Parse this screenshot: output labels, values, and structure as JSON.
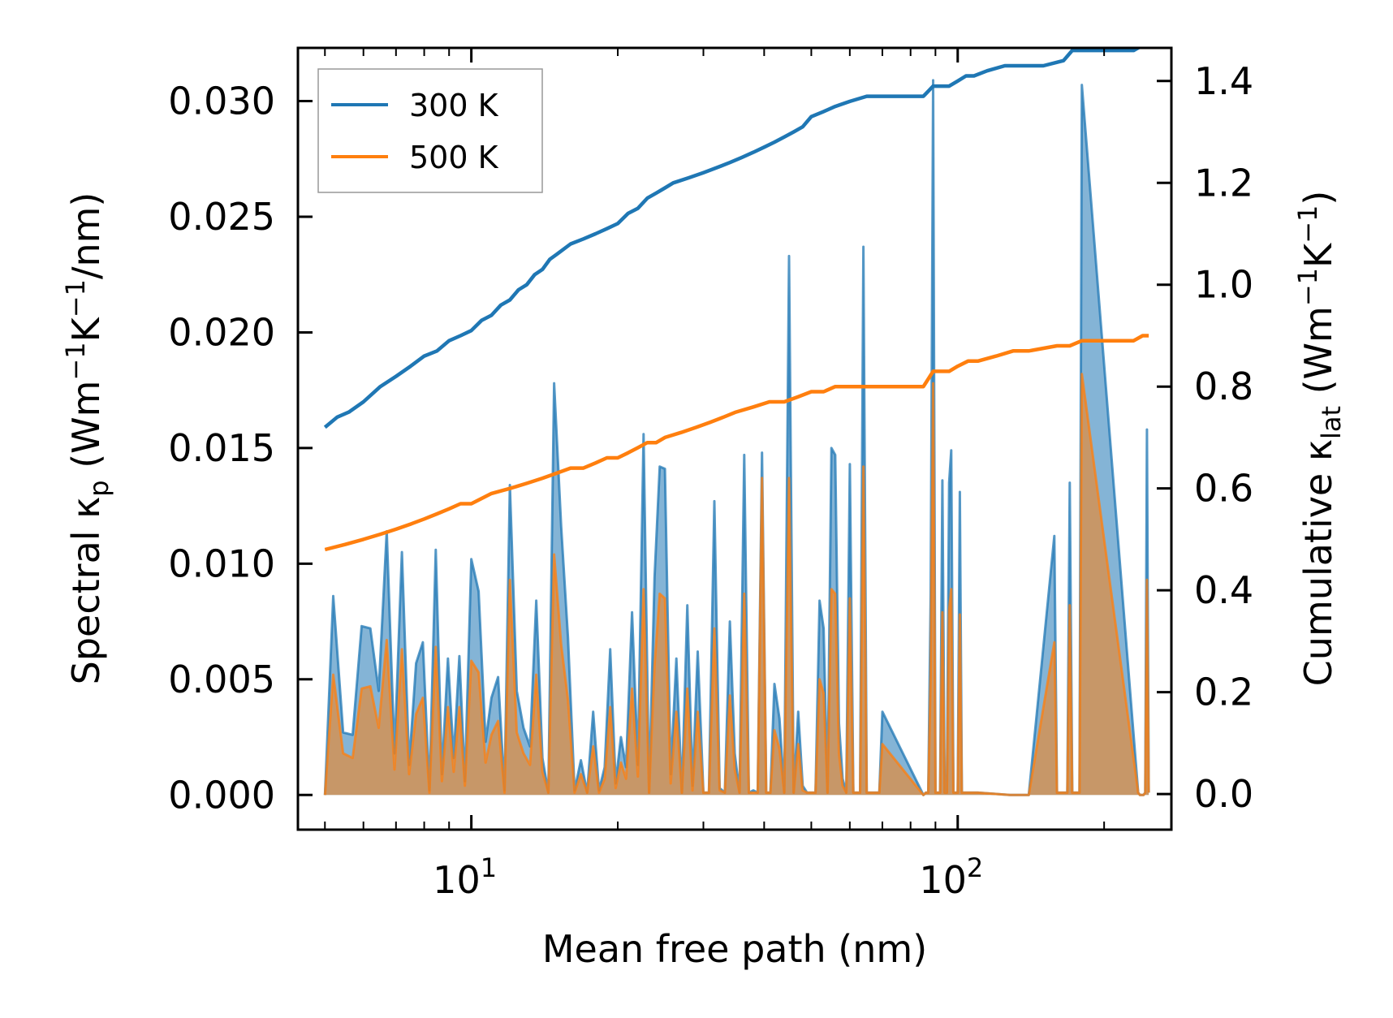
{
  "chart_data": {
    "type": "line",
    "xscale": "log",
    "xlabel": "Mean free path (nm)",
    "ylabel_left": "Spectral κ_p (Wm⁻¹K⁻¹/nm)",
    "ylabel_right": "Cumulative κ_lat (Wm⁻¹K⁻¹)",
    "ylabel_left_parts": {
      "pre": "Spectral κ",
      "sub": "p",
      "mid": " (Wm",
      "sup1": "−1",
      "mid2": "K",
      "sup2": "−1",
      "post": "/nm)"
    },
    "ylabel_right_parts": {
      "pre": "Cumulative κ",
      "sub": "lat",
      "mid": " (Wm",
      "sup1": "−1",
      "mid2": "K",
      "sup2": "−1",
      "post": ")"
    },
    "xlim": [
      4.4,
      275
    ],
    "ylim_left": [
      -0.0015,
      0.0323
    ],
    "ylim_right": [
      -0.07,
      1.465
    ],
    "x_ticks_major": [
      {
        "value": 10,
        "base": "10",
        "exp": "1"
      },
      {
        "value": 100,
        "base": "10",
        "exp": "2"
      }
    ],
    "y_ticks_left": [
      "0.000",
      "0.005",
      "0.010",
      "0.015",
      "0.020",
      "0.025",
      "0.030"
    ],
    "y_ticks_right": [
      "0.0",
      "0.2",
      "0.4",
      "0.6",
      "0.8",
      "1.0",
      "1.2",
      "1.4"
    ],
    "legend": [
      {
        "label": "300 K",
        "color": "#1f77b4"
      },
      {
        "label": "500 K",
        "color": "#ff7f0e"
      }
    ],
    "legend_position": "top-left",
    "series": [
      {
        "name": "300 K",
        "color": "#1f77b4",
        "spectral": {
          "x": [
            5.0,
            5.2,
            5.45,
            5.7,
            5.95,
            6.2,
            6.45,
            6.7,
            6.95,
            7.2,
            7.45,
            7.7,
            7.95,
            8.2,
            8.45,
            8.7,
            8.95,
            9.2,
            9.45,
            9.7,
            10.0,
            10.35,
            10.7,
            11.0,
            11.35,
            11.7,
            12.0,
            12.4,
            12.8,
            13.2,
            13.6,
            14.0,
            14.4,
            14.8,
            15.3,
            15.8,
            16.3,
            16.8,
            17.3,
            17.8,
            18.3,
            18.8,
            19.3,
            19.8,
            20.3,
            20.8,
            21.4,
            22.0,
            22.6,
            23.2,
            23.8,
            24.4,
            25.0,
            25.7,
            26.4,
            27.1,
            27.8,
            28.5,
            29.2,
            30.0,
            30.8,
            31.6,
            32.4,
            33.2,
            34.0,
            34.8,
            35.6,
            36.4,
            37.2,
            38.0,
            38.8,
            39.6,
            40.4,
            41.2,
            42.0,
            43.0,
            44.0,
            45.0,
            46.0,
            47.0,
            48.0,
            49.0,
            50.0,
            51.0,
            52.0,
            53.0,
            54.0,
            55.0,
            56.0,
            57.0,
            58.0,
            59.0,
            60.0,
            61.0,
            62.0,
            63.0,
            64.0,
            65.0,
            66.0,
            67.0,
            68.0,
            69.0,
            70.0,
            85.0,
            86.0,
            87.0,
            88.0,
            89.0,
            90.0,
            91.0,
            92.0,
            93.0,
            94.0,
            95.0,
            96.0,
            97.0,
            98.0,
            99.0,
            100.0,
            101.0,
            102.0,
            103.0,
            104.0,
            105.0,
            106.0,
            107.0,
            108.0,
            109.0,
            110.0,
            128.0,
            130.0,
            132.0,
            134.0,
            136.0,
            138.0,
            140.0,
            158.0,
            160.0,
            162.0,
            164.0,
            166.0,
            168.0,
            170.0,
            172.0,
            174.0,
            176.0,
            178.0,
            180.0,
            235.0,
            237.0,
            239.0,
            241.0,
            243.0,
            245.0,
            247.0
          ],
          "y": [
            0.0,
            0.0086,
            0.0027,
            0.0026,
            0.0073,
            0.0072,
            0.0045,
            0.0114,
            0.0018,
            0.0105,
            0.0013,
            0.0057,
            0.0066,
            0.0002,
            0.0106,
            0.0009,
            0.0059,
            0.0016,
            0.006,
            0.0006,
            0.0102,
            0.0088,
            0.0023,
            0.0042,
            0.0051,
            0.0002,
            0.0134,
            0.0045,
            0.0029,
            0.0021,
            0.0084,
            0.0016,
            0.0001,
            0.0178,
            0.0116,
            0.0068,
            0.0002,
            0.0015,
            0.0001,
            0.0036,
            0.0002,
            0.0012,
            0.0063,
            0.0005,
            0.0025,
            0.0012,
            0.0079,
            0.0013,
            0.0156,
            0.0001,
            0.0094,
            0.0142,
            0.0141,
            0.0009,
            0.0059,
            0.0001,
            0.0082,
            0.0004,
            0.0062,
            0.0001,
            0.0001,
            0.0127,
            0.0003,
            0.0001,
            0.0075,
            0.0018,
            0.0001,
            0.0147,
            0.0001,
            0.0002,
            0.0001,
            0.0148,
            0.0001,
            0.0001,
            0.0048,
            0.0033,
            0.0001,
            0.0233,
            0.0001,
            0.0036,
            0.0004,
            0.0001,
            0.0001,
            0.0001,
            0.0084,
            0.0072,
            0.0001,
            0.015,
            0.0147,
            0.0031,
            0.0007,
            0.0001,
            0.0143,
            0.0001,
            0.0001,
            0.0001,
            0.0237,
            0.0001,
            0.0001,
            0.0001,
            0.0001,
            0.0001,
            0.0036,
            0.0,
            0.0001,
            0.0001,
            0.0087,
            0.0309,
            0.0001,
            0.0001,
            0.0001,
            0.0136,
            0.0001,
            0.0001,
            0.0135,
            0.0149,
            0.0001,
            0.0001,
            0.0001,
            0.0131,
            0.0001,
            0.0001,
            0.0001,
            0.0001,
            0.0001,
            0.0001,
            0.0001,
            0.0001,
            0.0001,
            0.0,
            0.0,
            0.0,
            0.0,
            0.0,
            0.0,
            0.0,
            0.0112,
            0.0001,
            0.0001,
            0.0001,
            0.0001,
            0.0001,
            0.0135,
            0.0001,
            0.0001,
            0.0001,
            0.0001,
            0.0307,
            0.0001,
            0.0,
            0.0,
            0.0,
            0.0001,
            0.0158,
            0.0001
          ]
        },
        "cumulative": {
          "x": [
            5.0,
            5.3,
            5.6,
            6.0,
            6.5,
            7.0,
            7.5,
            8.0,
            8.5,
            9.0,
            9.5,
            10.0,
            10.5,
            11.0,
            11.5,
            12.0,
            12.5,
            13.0,
            13.5,
            14.0,
            14.5,
            15.0,
            16.0,
            17.0,
            18.0,
            19.0,
            20.0,
            21.0,
            22.0,
            23.0,
            24.0,
            25.0,
            26.0,
            28.0,
            30.0,
            32.0,
            34.0,
            36.0,
            38.0,
            40.0,
            42.0,
            44.0,
            46.0,
            48.0,
            50.0,
            53.0,
            56.0,
            60.0,
            65.0,
            70.0,
            75.0,
            80.0,
            85.0,
            89.0,
            92.0,
            96.0,
            100.0,
            104.0,
            108.0,
            115.0,
            125.0,
            135.0,
            150.0,
            165.0,
            172.0,
            180.0,
            200.0,
            230.0,
            240.0,
            247.0
          ],
          "y": [
            0.72,
            0.74,
            0.75,
            0.77,
            0.8,
            0.82,
            0.84,
            0.86,
            0.87,
            0.89,
            0.9,
            0.91,
            0.93,
            0.94,
            0.96,
            0.97,
            0.99,
            1.0,
            1.02,
            1.03,
            1.05,
            1.06,
            1.08,
            1.09,
            1.1,
            1.11,
            1.12,
            1.14,
            1.15,
            1.17,
            1.18,
            1.19,
            1.2,
            1.21,
            1.22,
            1.23,
            1.24,
            1.25,
            1.26,
            1.27,
            1.28,
            1.29,
            1.3,
            1.31,
            1.33,
            1.34,
            1.35,
            1.36,
            1.37,
            1.37,
            1.37,
            1.37,
            1.37,
            1.39,
            1.39,
            1.39,
            1.4,
            1.41,
            1.41,
            1.42,
            1.43,
            1.43,
            1.43,
            1.44,
            1.46,
            1.46,
            1.46,
            1.46,
            1.47,
            1.47
          ]
        }
      },
      {
        "name": "500 K",
        "color": "#ff7f0e",
        "spectral": {
          "x": [
            5.0,
            5.2,
            5.45,
            5.7,
            5.95,
            6.2,
            6.45,
            6.7,
            6.95,
            7.2,
            7.45,
            7.7,
            7.95,
            8.2,
            8.45,
            8.7,
            8.95,
            9.2,
            9.45,
            9.7,
            10.0,
            10.35,
            10.7,
            11.0,
            11.35,
            11.7,
            12.0,
            12.4,
            12.8,
            13.2,
            13.6,
            14.0,
            14.4,
            14.8,
            15.3,
            15.8,
            16.3,
            16.8,
            17.3,
            17.8,
            18.3,
            18.8,
            19.3,
            19.8,
            20.3,
            20.8,
            21.4,
            22.0,
            22.6,
            23.2,
            23.8,
            24.4,
            25.0,
            25.7,
            26.4,
            27.1,
            27.8,
            28.5,
            29.2,
            30.0,
            30.8,
            31.6,
            32.4,
            33.2,
            34.0,
            34.8,
            35.6,
            36.4,
            37.2,
            38.0,
            38.8,
            39.6,
            40.4,
            41.2,
            42.0,
            43.0,
            44.0,
            45.0,
            46.0,
            47.0,
            48.0,
            49.0,
            50.0,
            51.0,
            52.0,
            53.0,
            54.0,
            55.0,
            56.0,
            57.0,
            58.0,
            59.0,
            60.0,
            61.0,
            62.0,
            63.0,
            64.0,
            65.0,
            66.0,
            67.0,
            68.0,
            69.0,
            70.0,
            85.0,
            86.0,
            87.0,
            88.0,
            89.0,
            90.0,
            91.0,
            92.0,
            93.0,
            94.0,
            95.0,
            96.0,
            97.0,
            98.0,
            99.0,
            100.0,
            101.0,
            102.0,
            103.0,
            104.0,
            105.0,
            106.0,
            107.0,
            108.0,
            109.0,
            110.0,
            128.0,
            130.0,
            132.0,
            134.0,
            136.0,
            138.0,
            140.0,
            158.0,
            160.0,
            162.0,
            164.0,
            166.0,
            168.0,
            170.0,
            172.0,
            174.0,
            176.0,
            178.0,
            180.0,
            235.0,
            237.0,
            239.0,
            241.0,
            243.0,
            245.0,
            247.0
          ],
          "y": [
            0.0,
            0.0052,
            0.0018,
            0.0016,
            0.0046,
            0.0047,
            0.0029,
            0.0067,
            0.0011,
            0.0063,
            0.0009,
            0.0035,
            0.0042,
            0.0001,
            0.0064,
            0.0006,
            0.0038,
            0.001,
            0.0038,
            0.0004,
            0.0058,
            0.0053,
            0.0014,
            0.0026,
            0.0032,
            0.0001,
            0.0093,
            0.0027,
            0.0018,
            0.0013,
            0.0052,
            0.001,
            0.0001,
            0.0104,
            0.0065,
            0.0041,
            0.0001,
            0.0009,
            0.0001,
            0.0021,
            0.0001,
            0.0007,
            0.0038,
            0.0003,
            0.0014,
            0.0007,
            0.0046,
            0.0008,
            0.0089,
            0.0001,
            0.0056,
            0.0087,
            0.0085,
            0.0005,
            0.0036,
            0.0001,
            0.0046,
            0.0002,
            0.0036,
            0.0001,
            0.0001,
            0.0072,
            0.0002,
            0.0001,
            0.0043,
            0.0011,
            0.0001,
            0.0087,
            0.0001,
            0.0001,
            0.0001,
            0.0137,
            0.0001,
            0.0001,
            0.0028,
            0.002,
            0.0001,
            0.0137,
            0.0001,
            0.0022,
            0.0002,
            0.0001,
            0.0001,
            0.0001,
            0.005,
            0.0044,
            0.0001,
            0.0089,
            0.0087,
            0.0018,
            0.0004,
            0.0001,
            0.0085,
            0.0001,
            0.0001,
            0.0001,
            0.0142,
            0.0001,
            0.0001,
            0.0001,
            0.0001,
            0.0001,
            0.0022,
            0.0,
            0.0001,
            0.0001,
            0.0052,
            0.0178,
            0.0001,
            0.0001,
            0.0001,
            0.0079,
            0.0001,
            0.0001,
            0.008,
            0.0089,
            0.0001,
            0.0001,
            0.0001,
            0.0078,
            0.0001,
            0.0001,
            0.0001,
            0.0001,
            0.0001,
            0.0001,
            0.0001,
            0.0001,
            0.0001,
            0.0,
            0.0,
            0.0,
            0.0,
            0.0,
            0.0,
            0.0,
            0.0066,
            0.0001,
            0.0001,
            0.0001,
            0.0001,
            0.0001,
            0.0082,
            0.0001,
            0.0001,
            0.0001,
            0.0001,
            0.0182,
            0.0001,
            0.0,
            0.0,
            0.0,
            0.0001,
            0.0093,
            0.0001
          ]
        },
        "cumulative": {
          "x": [
            5.0,
            5.5,
            6.0,
            6.5,
            7.0,
            7.5,
            8.0,
            8.5,
            9.0,
            9.5,
            10.0,
            11.0,
            12.0,
            13.0,
            14.0,
            15.0,
            16.0,
            17.0,
            18.0,
            19.0,
            20.0,
            21.0,
            22.0,
            23.0,
            24.0,
            25.0,
            27.0,
            29.0,
            31.0,
            33.0,
            35.0,
            38.0,
            41.0,
            44.0,
            47.0,
            50.0,
            53.0,
            56.0,
            60.0,
            65.0,
            70.0,
            80.0,
            85.0,
            89.0,
            92.0,
            96.0,
            100.0,
            105.0,
            110.0,
            120.0,
            130.0,
            140.0,
            160.0,
            170.0,
            180.0,
            200.0,
            230.0,
            240.0,
            247.0
          ],
          "y": [
            0.48,
            0.49,
            0.5,
            0.51,
            0.52,
            0.53,
            0.54,
            0.55,
            0.56,
            0.57,
            0.57,
            0.59,
            0.6,
            0.61,
            0.62,
            0.63,
            0.64,
            0.64,
            0.65,
            0.66,
            0.66,
            0.67,
            0.68,
            0.69,
            0.69,
            0.7,
            0.71,
            0.72,
            0.73,
            0.74,
            0.75,
            0.76,
            0.77,
            0.77,
            0.78,
            0.79,
            0.79,
            0.8,
            0.8,
            0.8,
            0.8,
            0.8,
            0.8,
            0.83,
            0.83,
            0.83,
            0.84,
            0.85,
            0.85,
            0.86,
            0.87,
            0.87,
            0.88,
            0.88,
            0.89,
            0.89,
            0.89,
            0.9,
            0.9
          ]
        }
      }
    ]
  }
}
